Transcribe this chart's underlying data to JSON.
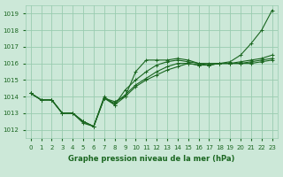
{
  "title": "Graphe pression niveau de la mer (hPa)",
  "bg_color": "#cce8d8",
  "grid_color": "#99ccb0",
  "line_color": "#1a6620",
  "xlim": [
    -0.5,
    23.5
  ],
  "ylim": [
    1011.5,
    1019.5
  ],
  "yticks": [
    1012,
    1013,
    1014,
    1015,
    1016,
    1017,
    1018,
    1019
  ],
  "xticks": [
    0,
    1,
    2,
    3,
    4,
    5,
    6,
    7,
    8,
    9,
    10,
    11,
    12,
    13,
    14,
    15,
    16,
    17,
    18,
    19,
    20,
    21,
    22,
    23
  ],
  "lines": [
    [
      1014.2,
      1013.8,
      1013.8,
      1013.0,
      1013.0,
      1012.5,
      1012.2,
      1013.9,
      1013.5,
      1014.0,
      1015.5,
      1016.2,
      1016.2,
      1016.2,
      1016.3,
      1016.2,
      1016.0,
      1016.0,
      1016.0,
      1016.1,
      1016.5,
      1017.2,
      1018.0,
      1019.2
    ],
    [
      1014.2,
      1013.8,
      1013.8,
      1013.0,
      1013.0,
      1012.4,
      1012.2,
      1014.0,
      1013.5,
      1014.4,
      1015.0,
      1015.5,
      1015.9,
      1016.1,
      1016.2,
      1016.1,
      1016.0,
      1015.9,
      1016.0,
      1016.0,
      1016.1,
      1016.2,
      1016.3,
      1016.5
    ],
    [
      1014.2,
      1013.8,
      1013.8,
      1013.0,
      1013.0,
      1012.5,
      1012.2,
      1013.9,
      1013.6,
      1014.1,
      1014.7,
      1015.1,
      1015.5,
      1015.8,
      1016.0,
      1016.0,
      1015.9,
      1015.9,
      1016.0,
      1016.0,
      1016.0,
      1016.1,
      1016.2,
      1016.3
    ],
    [
      1014.2,
      1013.8,
      1013.8,
      1013.0,
      1013.0,
      1012.5,
      1012.2,
      1013.9,
      1013.7,
      1014.0,
      1014.6,
      1015.0,
      1015.3,
      1015.6,
      1015.8,
      1016.0,
      1015.9,
      1015.9,
      1016.0,
      1016.0,
      1016.0,
      1016.0,
      1016.1,
      1016.2
    ]
  ],
  "marker": "+",
  "markersize": 3,
  "linewidth": 0.8,
  "tick_fontsize": 5.0,
  "xlabel_fontsize": 6.0
}
